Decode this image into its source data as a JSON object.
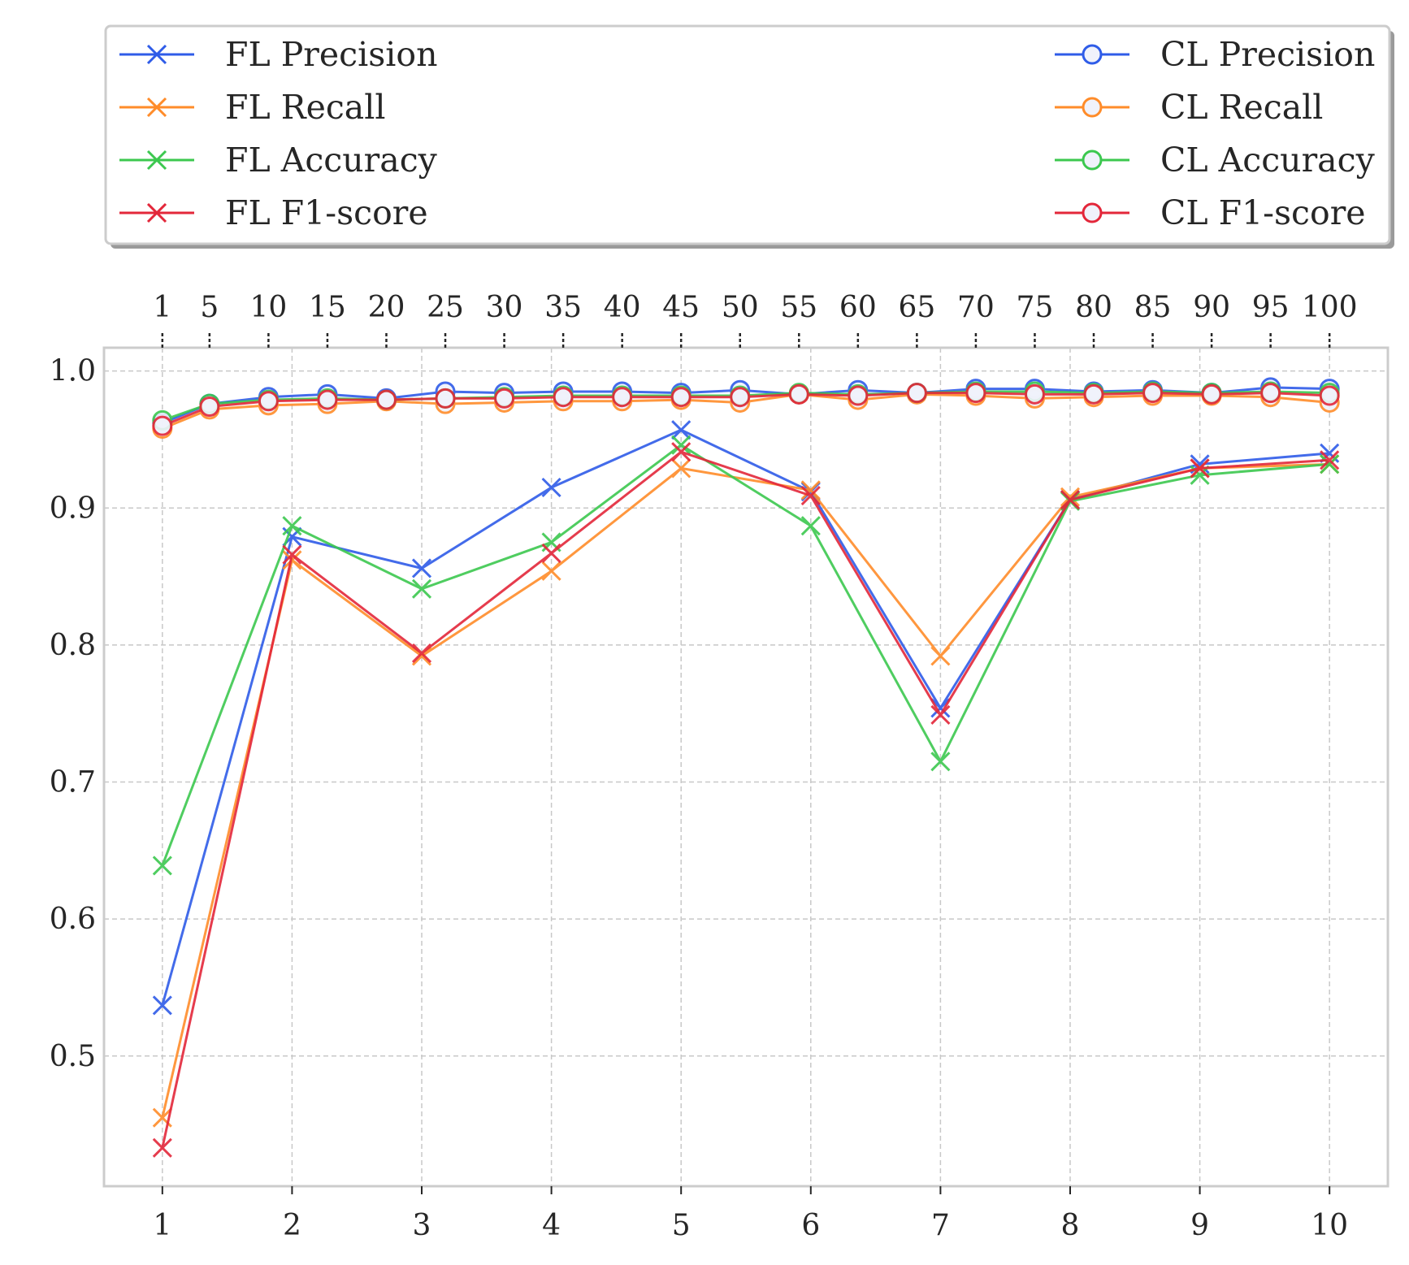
{
  "chart_data": {
    "type": "line",
    "title": "",
    "xlabel": "",
    "ylabel": "",
    "grid": true,
    "legend": {
      "position": "top",
      "columns": 2
    },
    "x_bottom": {
      "ticks": [
        1,
        2,
        3,
        4,
        5,
        6,
        7,
        8,
        9,
        10
      ],
      "tick_labels": [
        "1",
        "2",
        "3",
        "4",
        "5",
        "6",
        "7",
        "8",
        "9",
        "10"
      ],
      "range": [
        0.55,
        10.45
      ]
    },
    "x_top": {
      "ticks": [
        1,
        5,
        10,
        15,
        20,
        25,
        30,
        35,
        40,
        45,
        50,
        55,
        60,
        65,
        70,
        75,
        80,
        85,
        90,
        95,
        100
      ],
      "tick_labels": [
        "1",
        "5",
        "10",
        "15",
        "20",
        "25",
        "30",
        "35",
        "40",
        "45",
        "50",
        "55",
        "60",
        "65",
        "70",
        "75",
        "80",
        "85",
        "90",
        "95",
        "100"
      ]
    },
    "y": {
      "ticks": [
        0.5,
        0.6,
        0.7,
        0.8,
        0.9,
        1.0
      ],
      "tick_labels": [
        "0.5",
        "0.6",
        "0.7",
        "0.8",
        "0.9",
        "1.0"
      ],
      "range": [
        0.405,
        1.017
      ]
    },
    "series": [
      {
        "name": "FL Precision",
        "axis": "bottom",
        "marker": "x",
        "color": "#2f5ce8",
        "x": [
          1,
          2,
          3,
          4,
          5,
          6,
          7,
          8,
          9,
          10
        ],
        "values": [
          0.537,
          0.879,
          0.856,
          0.915,
          0.957,
          0.912,
          0.754,
          0.906,
          0.932,
          0.94
        ]
      },
      {
        "name": "FL Recall",
        "axis": "bottom",
        "marker": "x",
        "color": "#ff8c2a",
        "x": [
          1,
          2,
          3,
          4,
          5,
          6,
          7,
          8,
          9,
          10
        ],
        "values": [
          0.455,
          0.862,
          0.792,
          0.854,
          0.929,
          0.913,
          0.792,
          0.908,
          0.929,
          0.932
        ]
      },
      {
        "name": "FL Accuracy",
        "axis": "bottom",
        "marker": "x",
        "color": "#3cc84f",
        "x": [
          1,
          2,
          3,
          4,
          5,
          6,
          7,
          8,
          9,
          10
        ],
        "values": [
          0.639,
          0.887,
          0.841,
          0.875,
          0.946,
          0.887,
          0.715,
          0.905,
          0.924,
          0.932
        ]
      },
      {
        "name": "FL F1-score",
        "axis": "bottom",
        "marker": "x",
        "color": "#e3273a",
        "x": [
          1,
          2,
          3,
          4,
          5,
          6,
          7,
          8,
          9,
          10
        ],
        "values": [
          0.433,
          0.866,
          0.794,
          0.867,
          0.941,
          0.909,
          0.749,
          0.906,
          0.929,
          0.935
        ]
      },
      {
        "name": "CL Precision",
        "axis": "top",
        "marker": "o",
        "color": "#2f5ce8",
        "x": [
          1,
          5,
          10,
          15,
          20,
          25,
          30,
          35,
          40,
          45,
          50,
          55,
          60,
          65,
          70,
          75,
          80,
          85,
          90,
          95,
          100
        ],
        "values": [
          0.962,
          0.976,
          0.981,
          0.983,
          0.98,
          0.985,
          0.984,
          0.985,
          0.985,
          0.984,
          0.986,
          0.983,
          0.986,
          0.984,
          0.987,
          0.987,
          0.985,
          0.986,
          0.984,
          0.988,
          0.987
        ]
      },
      {
        "name": "CL Recall",
        "axis": "top",
        "marker": "o",
        "color": "#ff8c2a",
        "x": [
          1,
          5,
          10,
          15,
          20,
          25,
          30,
          35,
          40,
          45,
          50,
          55,
          60,
          65,
          70,
          75,
          80,
          85,
          90,
          95,
          100
        ],
        "values": [
          0.958,
          0.972,
          0.975,
          0.976,
          0.978,
          0.976,
          0.977,
          0.978,
          0.978,
          0.979,
          0.977,
          0.983,
          0.979,
          0.983,
          0.982,
          0.98,
          0.981,
          0.982,
          0.982,
          0.981,
          0.977
        ]
      },
      {
        "name": "CL Accuracy",
        "axis": "top",
        "marker": "o",
        "color": "#3cc84f",
        "x": [
          1,
          5,
          10,
          15,
          20,
          25,
          30,
          35,
          40,
          45,
          50,
          55,
          60,
          65,
          70,
          75,
          80,
          85,
          90,
          95,
          100
        ],
        "values": [
          0.964,
          0.976,
          0.979,
          0.98,
          0.979,
          0.98,
          0.981,
          0.982,
          0.982,
          0.982,
          0.982,
          0.984,
          0.983,
          0.984,
          0.985,
          0.985,
          0.984,
          0.985,
          0.984,
          0.985,
          0.984
        ]
      },
      {
        "name": "CL F1-score",
        "axis": "top",
        "marker": "o",
        "color": "#e3273a",
        "x": [
          1,
          5,
          10,
          15,
          20,
          25,
          30,
          35,
          40,
          45,
          50,
          55,
          60,
          65,
          70,
          75,
          80,
          85,
          90,
          95,
          100
        ],
        "values": [
          0.96,
          0.974,
          0.978,
          0.979,
          0.979,
          0.98,
          0.98,
          0.981,
          0.981,
          0.981,
          0.981,
          0.983,
          0.982,
          0.984,
          0.984,
          0.983,
          0.983,
          0.984,
          0.983,
          0.984,
          0.982
        ]
      }
    ]
  }
}
